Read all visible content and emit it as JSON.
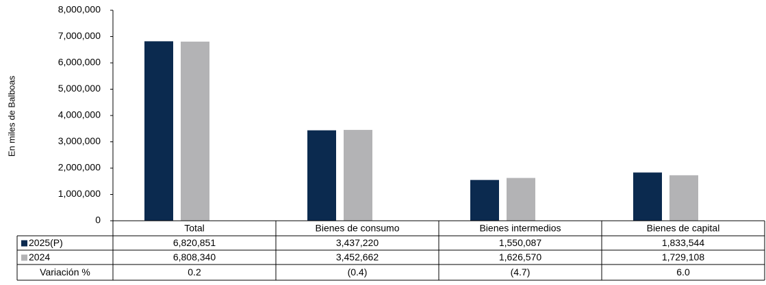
{
  "chart_data": {
    "type": "bar",
    "y_axis_label": "En miles de Balboas",
    "categories": [
      "Total",
      "Bienes de consumo",
      "Bienes intermedios",
      "Bienes de capital"
    ],
    "series": [
      {
        "name": "2025(P)",
        "color": "#0b2a4f",
        "values": [
          6820851,
          3437220,
          1550087,
          1833544
        ],
        "value_labels": [
          "6,820,851",
          "3,437,220",
          "1,550,087",
          "1,833,544"
        ]
      },
      {
        "name": "2024",
        "color": "#b3b3b5",
        "values": [
          6808340,
          3452662,
          1626570,
          1729108
        ],
        "value_labels": [
          "6,808,340",
          "3,452,662",
          "1,626,570",
          "1,729,108"
        ]
      }
    ],
    "variation": {
      "label": "Variación %",
      "values": [
        0.2,
        -0.4,
        -4.7,
        6.0
      ],
      "value_labels": [
        "0.2",
        "(0.4)",
        "(4.7)",
        "6.0"
      ]
    },
    "ylim": [
      0,
      8000000
    ],
    "yticks": [
      0,
      {
        "value": 1000000,
        "label": "1,000,000"
      },
      {
        "value": 2000000,
        "label": "2,000,000"
      },
      {
        "value": 3000000,
        "label": "3,000,000"
      },
      {
        "value": 4000000,
        "label": "4,000,000"
      },
      {
        "value": 5000000,
        "label": "5,000,000"
      },
      {
        "value": 6000000,
        "label": "6,000,000"
      },
      {
        "value": 7000000,
        "label": "7,000,000"
      },
      {
        "value": 8000000,
        "label": "8,000,000"
      }
    ],
    "grid": false
  }
}
